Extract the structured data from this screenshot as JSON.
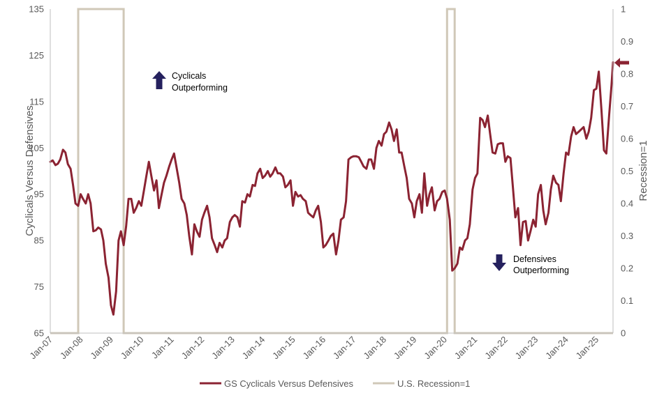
{
  "chart_data": {
    "type": "line",
    "ylabel": "Cyclicals Versus Defensives",
    "y2label": "Recession=1",
    "ylim": [
      65,
      135
    ],
    "y_ticks": [
      65,
      75,
      85,
      95,
      105,
      115,
      125,
      135
    ],
    "y2lim": [
      0,
      1
    ],
    "y2_ticks": [
      "0",
      "0.1",
      "0.2",
      "0.3",
      "0.4",
      "0.5",
      "0.6",
      "0.7",
      "0.8",
      "0.9",
      "1"
    ],
    "x_range_years": [
      2007.0,
      2025.55
    ],
    "x_ticks": [
      {
        "label": "Jan-07",
        "t": 2007
      },
      {
        "label": "Jan-08",
        "t": 2008
      },
      {
        "label": "Jan-09",
        "t": 2009
      },
      {
        "label": "Jan-10",
        "t": 2010
      },
      {
        "label": "Jan-11",
        "t": 2011
      },
      {
        "label": "Jan-12",
        "t": 2012
      },
      {
        "label": "Jan-13",
        "t": 2013
      },
      {
        "label": "Jan-14",
        "t": 2014
      },
      {
        "label": "Jan-15",
        "t": 2015
      },
      {
        "label": "Jan-16",
        "t": 2016
      },
      {
        "label": "Jan-17",
        "t": 2017
      },
      {
        "label": "Jan-18",
        "t": 2018
      },
      {
        "label": "Jan-19",
        "t": 2019
      },
      {
        "label": "Jan-20",
        "t": 2020
      },
      {
        "label": "Jan-21",
        "t": 2021
      },
      {
        "label": "Jan-22",
        "t": 2022
      },
      {
        "label": "Jan-23",
        "t": 2023
      },
      {
        "label": "Jan-24",
        "t": 2024
      },
      {
        "label": "Jan-25",
        "t": 2025
      }
    ],
    "grid": false,
    "legend_position": "bottom",
    "series": [
      {
        "name": "GS Cyclicals Versus Defensives",
        "axis": "left",
        "color": "#8B2332",
        "points": [
          [
            2007.0,
            102.0
          ],
          [
            2007.08,
            102.3
          ],
          [
            2007.17,
            101.3
          ],
          [
            2007.25,
            101.6
          ],
          [
            2007.33,
            102.5
          ],
          [
            2007.42,
            104.6
          ],
          [
            2007.5,
            104.0
          ],
          [
            2007.58,
            101.5
          ],
          [
            2007.67,
            100.5
          ],
          [
            2007.75,
            97.0
          ],
          [
            2007.83,
            93.0
          ],
          [
            2007.92,
            92.5
          ],
          [
            2008.0,
            95.0
          ],
          [
            2008.08,
            94.0
          ],
          [
            2008.17,
            93.0
          ],
          [
            2008.25,
            95.0
          ],
          [
            2008.33,
            93.0
          ],
          [
            2008.42,
            87.0
          ],
          [
            2008.5,
            87.2
          ],
          [
            2008.58,
            87.8
          ],
          [
            2008.67,
            87.4
          ],
          [
            2008.75,
            85.0
          ],
          [
            2008.83,
            80.0
          ],
          [
            2008.92,
            77.0
          ],
          [
            2009.0,
            71.0
          ],
          [
            2009.08,
            69.0
          ],
          [
            2009.17,
            74.0
          ],
          [
            2009.25,
            85.0
          ],
          [
            2009.33,
            87.0
          ],
          [
            2009.42,
            84.0
          ],
          [
            2009.5,
            88.0
          ],
          [
            2009.58,
            94.0
          ],
          [
            2009.67,
            94.0
          ],
          [
            2009.75,
            91.0
          ],
          [
            2009.83,
            92.0
          ],
          [
            2009.92,
            93.5
          ],
          [
            2010.0,
            92.5
          ],
          [
            2010.08,
            95.5
          ],
          [
            2010.17,
            99.0
          ],
          [
            2010.25,
            102.0
          ],
          [
            2010.33,
            99.0
          ],
          [
            2010.42,
            95.8
          ],
          [
            2010.5,
            98.0
          ],
          [
            2010.58,
            92.0
          ],
          [
            2010.67,
            95.0
          ],
          [
            2010.75,
            97.5
          ],
          [
            2010.83,
            99.0
          ],
          [
            2010.92,
            101.0
          ],
          [
            2011.0,
            102.5
          ],
          [
            2011.08,
            103.8
          ],
          [
            2011.17,
            100.5
          ],
          [
            2011.25,
            97.5
          ],
          [
            2011.33,
            94.0
          ],
          [
            2011.42,
            93.0
          ],
          [
            2011.5,
            90.5
          ],
          [
            2011.58,
            86.0
          ],
          [
            2011.67,
            82.0
          ],
          [
            2011.75,
            88.5
          ],
          [
            2011.83,
            87.0
          ],
          [
            2011.92,
            85.8
          ],
          [
            2012.0,
            89.5
          ],
          [
            2012.08,
            91.0
          ],
          [
            2012.17,
            92.5
          ],
          [
            2012.25,
            90.0
          ],
          [
            2012.33,
            85.5
          ],
          [
            2012.42,
            84.0
          ],
          [
            2012.5,
            82.5
          ],
          [
            2012.58,
            84.5
          ],
          [
            2012.67,
            83.5
          ],
          [
            2012.75,
            85.0
          ],
          [
            2012.83,
            85.5
          ],
          [
            2012.92,
            89.0
          ],
          [
            2013.0,
            90.0
          ],
          [
            2013.08,
            90.5
          ],
          [
            2013.17,
            90.0
          ],
          [
            2013.25,
            88.0
          ],
          [
            2013.33,
            93.5
          ],
          [
            2013.42,
            93.2
          ],
          [
            2013.5,
            95.0
          ],
          [
            2013.58,
            94.5
          ],
          [
            2013.67,
            97.0
          ],
          [
            2013.75,
            96.8
          ],
          [
            2013.83,
            99.5
          ],
          [
            2013.92,
            100.5
          ],
          [
            2014.0,
            98.5
          ],
          [
            2014.08,
            99.0
          ],
          [
            2014.17,
            100.0
          ],
          [
            2014.25,
            98.8
          ],
          [
            2014.33,
            99.5
          ],
          [
            2014.42,
            100.8
          ],
          [
            2014.5,
            99.5
          ],
          [
            2014.58,
            99.5
          ],
          [
            2014.67,
            98.8
          ],
          [
            2014.75,
            96.5
          ],
          [
            2014.83,
            97.0
          ],
          [
            2014.92,
            98.0
          ],
          [
            2015.0,
            92.5
          ],
          [
            2015.08,
            95.5
          ],
          [
            2015.17,
            94.5
          ],
          [
            2015.25,
            94.8
          ],
          [
            2015.33,
            94.0
          ],
          [
            2015.42,
            93.5
          ],
          [
            2015.5,
            91.0
          ],
          [
            2015.58,
            90.5
          ],
          [
            2015.67,
            90.0
          ],
          [
            2015.75,
            91.5
          ],
          [
            2015.83,
            92.5
          ],
          [
            2015.92,
            89.0
          ],
          [
            2016.0,
            83.5
          ],
          [
            2016.08,
            84.0
          ],
          [
            2016.17,
            85.0
          ],
          [
            2016.25,
            86.0
          ],
          [
            2016.33,
            86.5
          ],
          [
            2016.42,
            82.0
          ],
          [
            2016.5,
            85.0
          ],
          [
            2016.58,
            89.5
          ],
          [
            2016.67,
            90.0
          ],
          [
            2016.75,
            93.5
          ],
          [
            2016.83,
            102.5
          ],
          [
            2016.92,
            103.0
          ],
          [
            2017.0,
            103.2
          ],
          [
            2017.08,
            103.2
          ],
          [
            2017.17,
            103.0
          ],
          [
            2017.25,
            102.0
          ],
          [
            2017.33,
            101.0
          ],
          [
            2017.42,
            100.5
          ],
          [
            2017.5,
            102.5
          ],
          [
            2017.58,
            102.5
          ],
          [
            2017.67,
            100.5
          ],
          [
            2017.75,
            105.0
          ],
          [
            2017.83,
            106.5
          ],
          [
            2017.92,
            105.5
          ],
          [
            2018.0,
            108.0
          ],
          [
            2018.08,
            108.5
          ],
          [
            2018.17,
            110.5
          ],
          [
            2018.25,
            109.0
          ],
          [
            2018.33,
            106.5
          ],
          [
            2018.42,
            109.0
          ],
          [
            2018.5,
            104.0
          ],
          [
            2018.58,
            104.0
          ],
          [
            2018.67,
            101.0
          ],
          [
            2018.75,
            98.5
          ],
          [
            2018.83,
            94.0
          ],
          [
            2018.92,
            93.0
          ],
          [
            2019.0,
            90.0
          ],
          [
            2019.08,
            93.5
          ],
          [
            2019.17,
            95.0
          ],
          [
            2019.25,
            91.0
          ],
          [
            2019.33,
            99.5
          ],
          [
            2019.42,
            92.5
          ],
          [
            2019.5,
            95.0
          ],
          [
            2019.58,
            96.5
          ],
          [
            2019.67,
            91.5
          ],
          [
            2019.75,
            93.5
          ],
          [
            2019.83,
            94.0
          ],
          [
            2019.92,
            95.5
          ],
          [
            2020.0,
            95.8
          ],
          [
            2020.08,
            94.0
          ],
          [
            2020.17,
            89.5
          ],
          [
            2020.25,
            78.5
          ],
          [
            2020.33,
            79.0
          ],
          [
            2020.42,
            80.0
          ],
          [
            2020.5,
            83.5
          ],
          [
            2020.58,
            83.0
          ],
          [
            2020.67,
            85.0
          ],
          [
            2020.75,
            85.5
          ],
          [
            2020.83,
            88.5
          ],
          [
            2020.92,
            96.0
          ],
          [
            2021.0,
            98.5
          ],
          [
            2021.08,
            99.5
          ],
          [
            2021.17,
            111.5
          ],
          [
            2021.25,
            111.0
          ],
          [
            2021.33,
            109.5
          ],
          [
            2021.42,
            112.0
          ],
          [
            2021.5,
            108.0
          ],
          [
            2021.58,
            104.0
          ],
          [
            2021.67,
            103.8
          ],
          [
            2021.75,
            105.8
          ],
          [
            2021.83,
            106.0
          ],
          [
            2021.92,
            106.0
          ],
          [
            2022.0,
            102.0
          ],
          [
            2022.08,
            103.2
          ],
          [
            2022.17,
            102.8
          ],
          [
            2022.25,
            96.5
          ],
          [
            2022.33,
            90.0
          ],
          [
            2022.42,
            92.0
          ],
          [
            2022.5,
            84.0
          ],
          [
            2022.58,
            89.0
          ],
          [
            2022.67,
            89.2
          ],
          [
            2022.75,
            85.0
          ],
          [
            2022.83,
            87.0
          ],
          [
            2022.92,
            89.5
          ],
          [
            2023.0,
            88.0
          ],
          [
            2023.08,
            95.0
          ],
          [
            2023.17,
            97.0
          ],
          [
            2023.25,
            91.5
          ],
          [
            2023.33,
            88.5
          ],
          [
            2023.42,
            91.0
          ],
          [
            2023.5,
            96.0
          ],
          [
            2023.58,
            99.0
          ],
          [
            2023.67,
            97.5
          ],
          [
            2023.75,
            97.0
          ],
          [
            2023.83,
            93.5
          ],
          [
            2023.92,
            99.5
          ],
          [
            2024.0,
            104.0
          ],
          [
            2024.08,
            103.5
          ],
          [
            2024.17,
            107.5
          ],
          [
            2024.25,
            109.5
          ],
          [
            2024.33,
            108.0
          ],
          [
            2024.42,
            108.5
          ],
          [
            2024.5,
            109.0
          ],
          [
            2024.58,
            109.5
          ],
          [
            2024.67,
            107.0
          ],
          [
            2024.75,
            108.5
          ],
          [
            2024.83,
            111.5
          ],
          [
            2024.92,
            117.5
          ],
          [
            2025.0,
            117.8
          ],
          [
            2025.08,
            121.5
          ],
          [
            2025.17,
            113.0
          ],
          [
            2025.25,
            104.5
          ],
          [
            2025.33,
            103.8
          ],
          [
            2025.42,
            112.0
          ],
          [
            2025.5,
            118.5
          ],
          [
            2025.55,
            123.5
          ]
        ]
      },
      {
        "name": "U.S. Recession=1",
        "axis": "right",
        "color": "#D0C8B8",
        "points": [
          [
            2007.0,
            0
          ],
          [
            2007.92,
            0
          ],
          [
            2007.92,
            1
          ],
          [
            2009.42,
            1
          ],
          [
            2009.42,
            0
          ],
          [
            2020.08,
            0
          ],
          [
            2020.08,
            1
          ],
          [
            2020.33,
            1
          ],
          [
            2020.33,
            0
          ],
          [
            2025.55,
            0
          ]
        ]
      }
    ],
    "annotations": [
      {
        "lines": [
          "Cyclicals",
          "Outperforming"
        ],
        "arrow": "up",
        "color": "#25215E"
      },
      {
        "lines": [
          "Defensives",
          "Outperforming"
        ],
        "arrow": "down",
        "color": "#25215E"
      }
    ],
    "latest_marker": {
      "arrow": "left",
      "color": "#8B2332"
    }
  }
}
